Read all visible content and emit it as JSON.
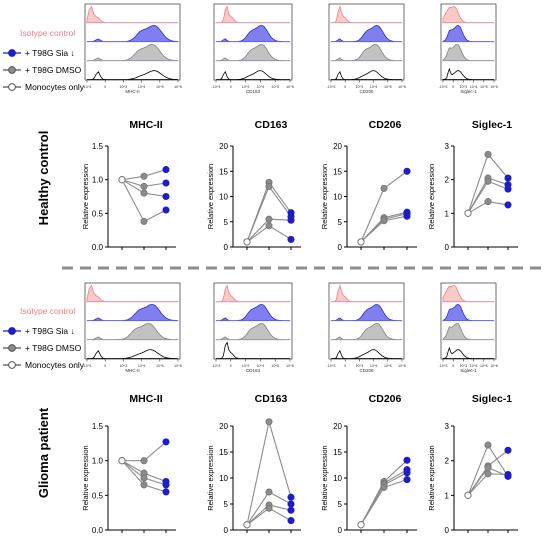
{
  "legend": {
    "isotype": "Isotype control",
    "items": [
      {
        "label": "+ T98G Sia ↓",
        "fill": "#1d1dc8"
      },
      {
        "label": "+ T98G DMSO",
        "fill": "#8c8c8c"
      },
      {
        "label": "Monocytes only",
        "fill": "#ffffff"
      }
    ]
  },
  "colors": {
    "isotype_fill": "#f7c9c9",
    "isotype_line": "#f08080",
    "sia_fill": "#7f7ff0",
    "sia_line": "#2c2cd0",
    "dmso_fill": "#c2c2c2",
    "dmso_line": "#808080",
    "mono_line": "#000000",
    "sia_dot": "#1d1dc8",
    "dmso_dot": "#8c8c8c",
    "mono_dot": "#ffffff",
    "connector": "#8c8c8c",
    "divider": "#8c8c8c"
  },
  "flow_axis_ticks": [
    "-10^3",
    "0",
    "10^3",
    "10^4",
    "10^5",
    "10^6"
  ],
  "chart_data": [
    {
      "group": "Healthy control",
      "histograms": [
        {
          "marker": "MHC-II",
          "peaks": {
            "isotype": 0.04,
            "sia": 0.74,
            "dmso": 0.72,
            "mono": 0.74
          }
        },
        {
          "marker": "CD163",
          "peaks": {
            "isotype": 0.14,
            "sia": 0.62,
            "dmso": 0.62,
            "mono": 0.6
          }
        },
        {
          "marker": "CD206",
          "peaks": {
            "isotype": 0.12,
            "sia": 0.65,
            "dmso": 0.63,
            "mono": 0.6
          }
        },
        {
          "marker": "Siglec-1",
          "peaks": {
            "isotype": 0.22,
            "sia": 0.3,
            "dmso": 0.28,
            "mono": 0.3
          }
        }
      ],
      "dot_plots": [
        {
          "type": "line",
          "title": "MHC-II",
          "ylabel": "Relative expression",
          "yticks": [
            "0.0",
            "0.5",
            "1.0",
            "1.5"
          ],
          "ylim": [
            0,
            1.5
          ],
          "x_conditions": [
            "Monocytes only",
            "+ T98G DMSO",
            "+ T98G Sia ↓"
          ],
          "donors": [
            [
              1.0,
              1.05,
              1.15
            ],
            [
              1.0,
              0.9,
              0.95
            ],
            [
              1.0,
              0.8,
              0.75
            ],
            [
              1.0,
              0.38,
              0.55
            ]
          ]
        },
        {
          "type": "line",
          "title": "CD163",
          "ylabel": "Relative expression",
          "yticks": [
            "0",
            "5",
            "10",
            "15",
            "20"
          ],
          "ylim": [
            0,
            20
          ],
          "x_conditions": [
            "Monocytes only",
            "+ T98G DMSO",
            "+ T98G Sia ↓"
          ],
          "donors": [
            [
              1.0,
              12.8,
              6.8
            ],
            [
              1.0,
              12.0,
              6.0
            ],
            [
              1.0,
              5.5,
              5.3
            ],
            [
              1.0,
              4.2,
              1.5
            ]
          ]
        },
        {
          "type": "line",
          "title": "CD206",
          "ylabel": "Relative expression",
          "yticks": [
            "0",
            "5",
            "10",
            "15",
            "20"
          ],
          "ylim": [
            0,
            20
          ],
          "x_conditions": [
            "Monocytes only",
            "+ T98G DMSO",
            "+ T98G Sia ↓"
          ],
          "donors": [
            [
              1.0,
              11.6,
              15.0
            ],
            [
              1.0,
              5.8,
              6.9
            ],
            [
              1.0,
              5.5,
              6.6
            ],
            [
              1.0,
              5.2,
              6.1
            ]
          ]
        },
        {
          "type": "line",
          "title": "Siglec-1",
          "ylabel": "Relative expression",
          "yticks": [
            "0",
            "1",
            "2",
            "3"
          ],
          "ylim": [
            0,
            3
          ],
          "x_conditions": [
            "Monocytes only",
            "+ T98G DMSO",
            "+ T98G Sia ↓"
          ],
          "donors": [
            [
              1.0,
              2.75,
              2.05
            ],
            [
              1.0,
              2.05,
              1.85
            ],
            [
              1.0,
              1.95,
              1.72
            ],
            [
              1.0,
              1.35,
              1.25
            ]
          ]
        }
      ]
    },
    {
      "group": "Glioma patient",
      "histograms": [
        {
          "marker": "MHC-II",
          "peaks": {
            "isotype": 0.04,
            "sia": 0.72,
            "dmso": 0.68,
            "mono": 0.7
          }
        },
        {
          "marker": "CD163",
          "peaks": {
            "isotype": 0.14,
            "sia": 0.62,
            "dmso": 0.62,
            "mono": 0.14
          }
        },
        {
          "marker": "CD206",
          "peaks": {
            "isotype": 0.12,
            "sia": 0.65,
            "dmso": 0.65,
            "mono": 0.6
          }
        },
        {
          "marker": "Siglec-1",
          "peaks": {
            "isotype": 0.22,
            "sia": 0.3,
            "dmso": 0.28,
            "mono": 0.3
          }
        }
      ],
      "dot_plots": [
        {
          "type": "line",
          "title": "MHC-II",
          "ylabel": "Relative expression",
          "yticks": [
            "0.0",
            "0.5",
            "1.0",
            "1.5"
          ],
          "ylim": [
            0,
            1.5
          ],
          "x_conditions": [
            "Monocytes only",
            "+ T98G DMSO",
            "+ T98G Sia ↓"
          ],
          "donors": [
            [
              1.0,
              1.0,
              1.27
            ],
            [
              1.0,
              0.82,
              0.7
            ],
            [
              1.0,
              0.75,
              0.65
            ],
            [
              1.0,
              0.65,
              0.55
            ]
          ]
        },
        {
          "type": "line",
          "title": "CD163",
          "ylabel": "Relative expression",
          "yticks": [
            "0",
            "5",
            "10",
            "15",
            "20"
          ],
          "ylim": [
            0,
            20
          ],
          "x_conditions": [
            "Monocytes only",
            "+ T98G DMSO",
            "+ T98G Sia ↓"
          ],
          "donors": [
            [
              1.0,
              20.8,
              6.3
            ],
            [
              1.0,
              7.3,
              5.0
            ],
            [
              1.0,
              4.8,
              3.8
            ],
            [
              1.0,
              4.2,
              1.8
            ]
          ]
        },
        {
          "type": "line",
          "title": "CD206",
          "ylabel": "Relative expression",
          "yticks": [
            "0",
            "5",
            "10",
            "15",
            "20"
          ],
          "ylim": [
            0,
            20
          ],
          "x_conditions": [
            "Monocytes only",
            "+ T98G DMSO",
            "+ T98G Sia ↓"
          ],
          "donors": [
            [
              1.0,
              9.3,
              13.4
            ],
            [
              1.0,
              9.0,
              11.6
            ],
            [
              1.0,
              8.7,
              11.0
            ],
            [
              1.0,
              8.2,
              9.7
            ]
          ]
        },
        {
          "type": "line",
          "title": "Siglec-1",
          "ylabel": "Relative expression",
          "yticks": [
            "0",
            "1",
            "2",
            "3"
          ],
          "ylim": [
            0,
            3
          ],
          "x_conditions": [
            "Monocytes only",
            "+ T98G DMSO",
            "+ T98G Sia ↓"
          ],
          "donors": [
            [
              1.0,
              2.45,
              1.55
            ],
            [
              1.0,
              1.85,
              2.3
            ],
            [
              1.0,
              1.8,
              1.55
            ],
            [
              1.0,
              1.62,
              1.6
            ]
          ]
        }
      ]
    }
  ]
}
